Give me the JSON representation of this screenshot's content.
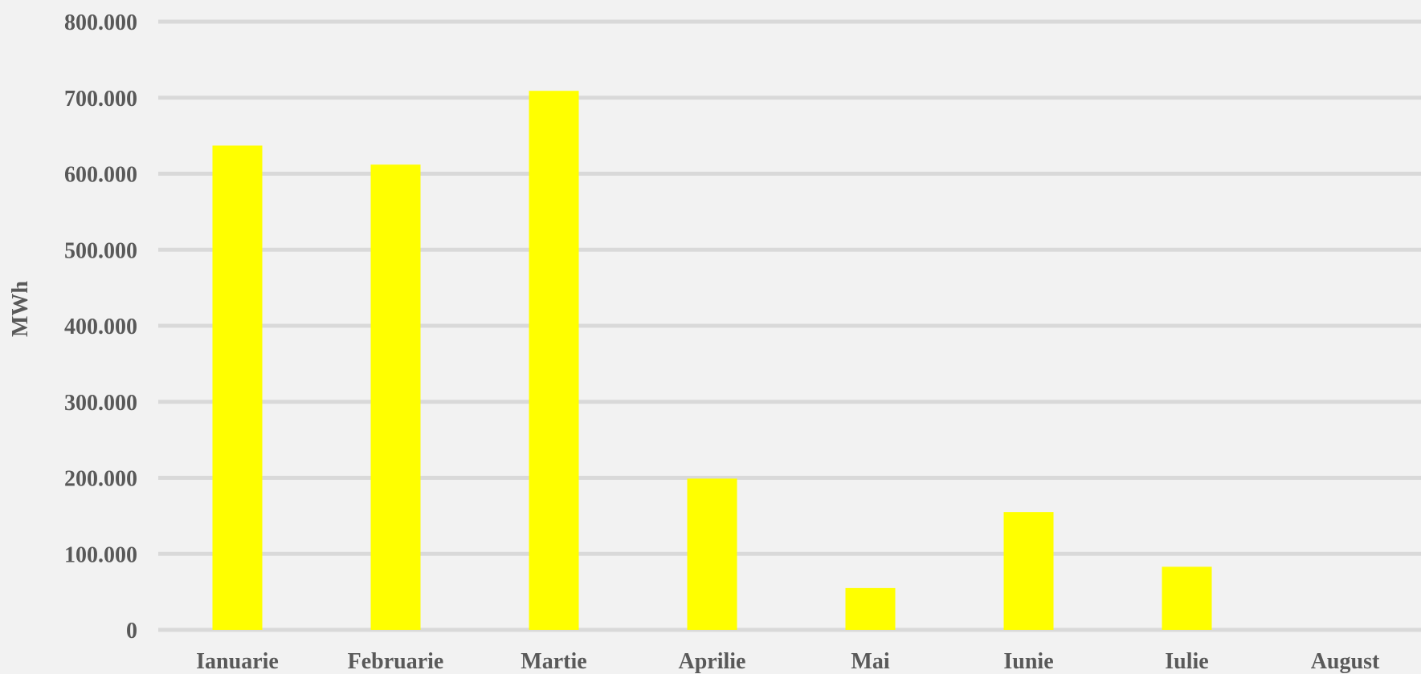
{
  "chart_data": {
    "type": "bar",
    "categories": [
      "Ianuarie",
      "Februarie",
      "Martie",
      "Aprilie",
      "Mai",
      "Iunie",
      "Iulie",
      "August"
    ],
    "values": [
      637000,
      612000,
      709000,
      199000,
      55000,
      155000,
      83000,
      0
    ],
    "ylabel": "MWh",
    "ylim": [
      0,
      800000
    ],
    "yticks": [
      0,
      100000,
      200000,
      300000,
      400000,
      500000,
      600000,
      700000,
      800000
    ],
    "ytick_labels": [
      "0",
      "100.000",
      "200.000",
      "300.000",
      "400.000",
      "500.000",
      "600.000",
      "700.000",
      "800.000"
    ],
    "grid": true,
    "legend": "none",
    "colors": {
      "bar": "#ffff00",
      "grid": "#d9d9d9",
      "text": "#595959",
      "background": "#f2f2f2"
    }
  }
}
